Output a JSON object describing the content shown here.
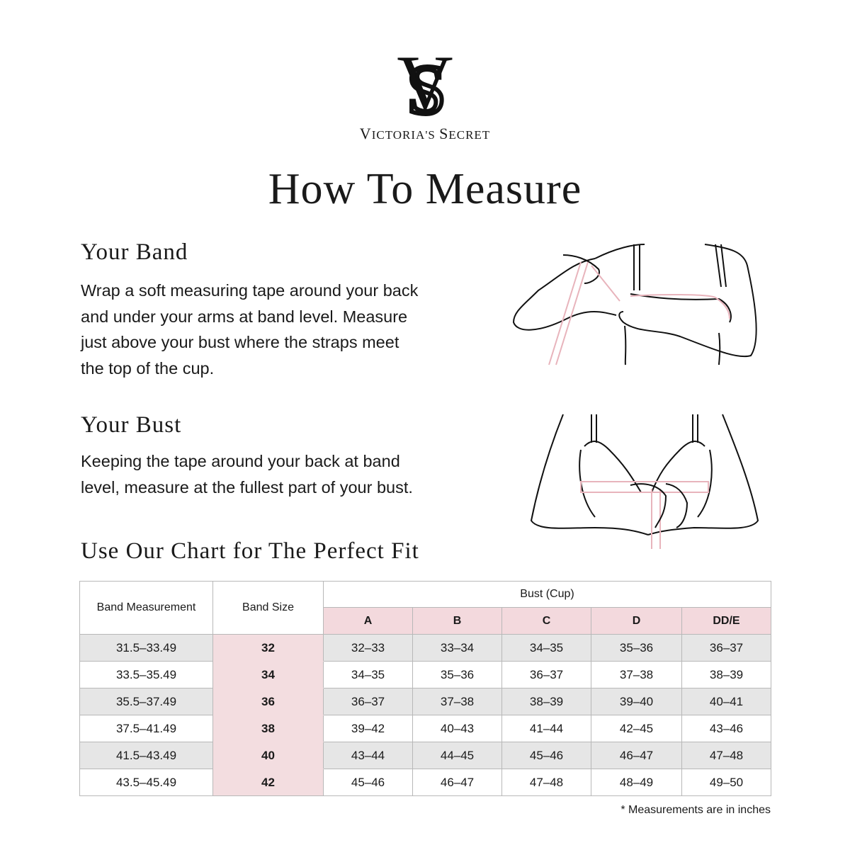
{
  "brand": {
    "logo_monogram": "VS",
    "name_first": "V",
    "name_rest_1": "ICTORIA'S ",
    "name_s": "S",
    "name_rest_2": "ECRET"
  },
  "title": "How To Measure",
  "band_section": {
    "heading": "Your Band",
    "lines": [
      "Wrap a soft measuring tape around your back",
      "and under your arms at band level.  Measure",
      "just above your bust where the straps meet",
      "the top of the cup."
    ]
  },
  "bust_section": {
    "heading": "Your Bust",
    "lines": [
      "Keeping the tape around your back at band",
      "level, measure at the fullest part of your bust."
    ]
  },
  "chart_heading": "Use Our Chart for The Perfect Fit",
  "colors": {
    "pink": "#f3d9dd",
    "gray": "#e6e6e6",
    "tape": "#e8b4bc"
  },
  "table": {
    "col_band_measurement": "Band Measurement",
    "col_band_size": "Band Size",
    "col_bust": "Bust (Cup)",
    "cups": [
      "A",
      "B",
      "C",
      "D",
      "DD/E"
    ],
    "rows": [
      {
        "measurement": "31.5–33.49",
        "size": "32",
        "cups": [
          "32–33",
          "33–34",
          "34–35",
          "35–36",
          "36–37"
        ]
      },
      {
        "measurement": "33.5–35.49",
        "size": "34",
        "cups": [
          "34–35",
          "35–36",
          "36–37",
          "37–38",
          "38–39"
        ]
      },
      {
        "measurement": "35.5–37.49",
        "size": "36",
        "cups": [
          "36–37",
          "37–38",
          "38–39",
          "39–40",
          "40–41"
        ]
      },
      {
        "measurement": "37.5–41.49",
        "size": "38",
        "cups": [
          "39–42",
          "40–43",
          "41–44",
          "42–45",
          "43–46"
        ]
      },
      {
        "measurement": "41.5–43.49",
        "size": "40",
        "cups": [
          "43–44",
          "44–45",
          "45–46",
          "46–47",
          "47–48"
        ]
      },
      {
        "measurement": "43.5–45.49",
        "size": "42",
        "cups": [
          "45–46",
          "46–47",
          "47–48",
          "48–49",
          "49–50"
        ]
      }
    ]
  },
  "footnote": "* Measurements are in inches"
}
